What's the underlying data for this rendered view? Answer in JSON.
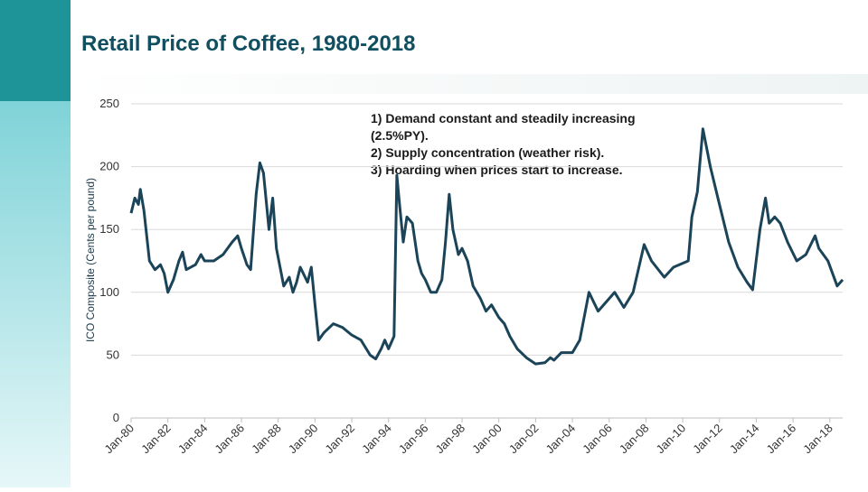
{
  "chart_data": {
    "type": "line",
    "title": "Retail Price of Coffee, 1980-2018",
    "y_label": "ICO Composite (Cents per pound)",
    "annotations": [
      "1) Demand constant and steadily increasing",
      "(2.5%PY).",
      "2) Supply concentration (weather risk).",
      "3) Hoarding when prices start to increase."
    ],
    "color": "#1b4459",
    "grid": true,
    "xlim": [
      1980,
      2018.7
    ],
    "ylim": [
      0,
      250
    ],
    "yticks": [
      0,
      50,
      100,
      150,
      200,
      250
    ],
    "xticks": [
      {
        "value": 1980,
        "label": "Jan-80"
      },
      {
        "value": 1982,
        "label": "Jan-82"
      },
      {
        "value": 1984,
        "label": "Jan-84"
      },
      {
        "value": 1986,
        "label": "Jan-86"
      },
      {
        "value": 1988,
        "label": "Jan-88"
      },
      {
        "value": 1990,
        "label": "Jan-90"
      },
      {
        "value": 1992,
        "label": "Jan-92"
      },
      {
        "value": 1994,
        "label": "Jan-94"
      },
      {
        "value": 1996,
        "label": "Jan-96"
      },
      {
        "value": 1998,
        "label": "Jan-98"
      },
      {
        "value": 2000,
        "label": "Jan-00"
      },
      {
        "value": 2002,
        "label": "Jan-02"
      },
      {
        "value": 2004,
        "label": "Jan-04"
      },
      {
        "value": 2006,
        "label": "Jan-06"
      },
      {
        "value": 2008,
        "label": "Jan-08"
      },
      {
        "value": 2010,
        "label": "Jan-10"
      },
      {
        "value": 2012,
        "label": "Jan-12"
      },
      {
        "value": 2014,
        "label": "Jan-14"
      },
      {
        "value": 2016,
        "label": "Jan-16"
      },
      {
        "value": 2018,
        "label": "Jan-18"
      }
    ],
    "x": [
      1980.0,
      1980.2,
      1980.4,
      1980.5,
      1980.7,
      1981.0,
      1981.3,
      1981.6,
      1981.8,
      1982.0,
      1982.3,
      1982.6,
      1982.8,
      1983.0,
      1983.5,
      1983.8,
      1984.0,
      1984.5,
      1985.0,
      1985.5,
      1985.8,
      1986.0,
      1986.3,
      1986.5,
      1986.8,
      1987.0,
      1987.2,
      1987.5,
      1987.7,
      1987.9,
      1988.3,
      1988.6,
      1988.8,
      1989.0,
      1989.2,
      1989.6,
      1989.8,
      1990.0,
      1990.2,
      1990.5,
      1991.0,
      1991.5,
      1992.0,
      1992.5,
      1993.0,
      1993.3,
      1993.6,
      1993.8,
      1994.0,
      1994.3,
      1994.45,
      1994.6,
      1994.8,
      1995.0,
      1995.3,
      1995.6,
      1995.8,
      1996.0,
      1996.3,
      1996.6,
      1996.9,
      1997.1,
      1997.3,
      1997.5,
      1997.8,
      1998.0,
      1998.3,
      1998.6,
      1999.0,
      1999.3,
      1999.6,
      2000.0,
      2000.3,
      2000.6,
      2001.0,
      2001.5,
      2002.0,
      2002.5,
      2002.8,
      2003.0,
      2003.4,
      2004.0,
      2004.4,
      2004.9,
      2005.4,
      2006.3,
      2006.8,
      2007.3,
      2007.9,
      2008.3,
      2009.0,
      2009.5,
      2010.3,
      2010.5,
      2010.8,
      2011.1,
      2011.5,
      2012.0,
      2012.5,
      2013.0,
      2013.5,
      2013.8,
      2014.2,
      2014.5,
      2014.7,
      2015.0,
      2015.3,
      2015.7,
      2016.2,
      2016.7,
      2017.2,
      2017.4,
      2017.9,
      2018.4,
      2018.7
    ],
    "values": [
      163,
      175,
      170,
      182,
      165,
      125,
      118,
      122,
      115,
      100,
      110,
      125,
      132,
      118,
      122,
      130,
      125,
      125,
      130,
      140,
      145,
      135,
      122,
      118,
      178,
      203,
      195,
      150,
      175,
      135,
      105,
      112,
      100,
      108,
      120,
      108,
      120,
      90,
      62,
      68,
      75,
      72,
      66,
      62,
      50,
      47,
      55,
      62,
      55,
      65,
      193,
      170,
      140,
      160,
      155,
      125,
      115,
      110,
      100,
      100,
      110,
      140,
      178,
      150,
      130,
      135,
      125,
      105,
      95,
      85,
      90,
      80,
      75,
      65,
      55,
      48,
      43,
      44,
      48,
      46,
      52,
      52,
      62,
      100,
      85,
      100,
      88,
      100,
      138,
      125,
      112,
      120,
      125,
      160,
      180,
      230,
      200,
      170,
      140,
      120,
      108,
      102,
      150,
      175,
      155,
      160,
      155,
      140,
      125,
      130,
      145,
      135,
      125,
      105,
      110
    ]
  }
}
